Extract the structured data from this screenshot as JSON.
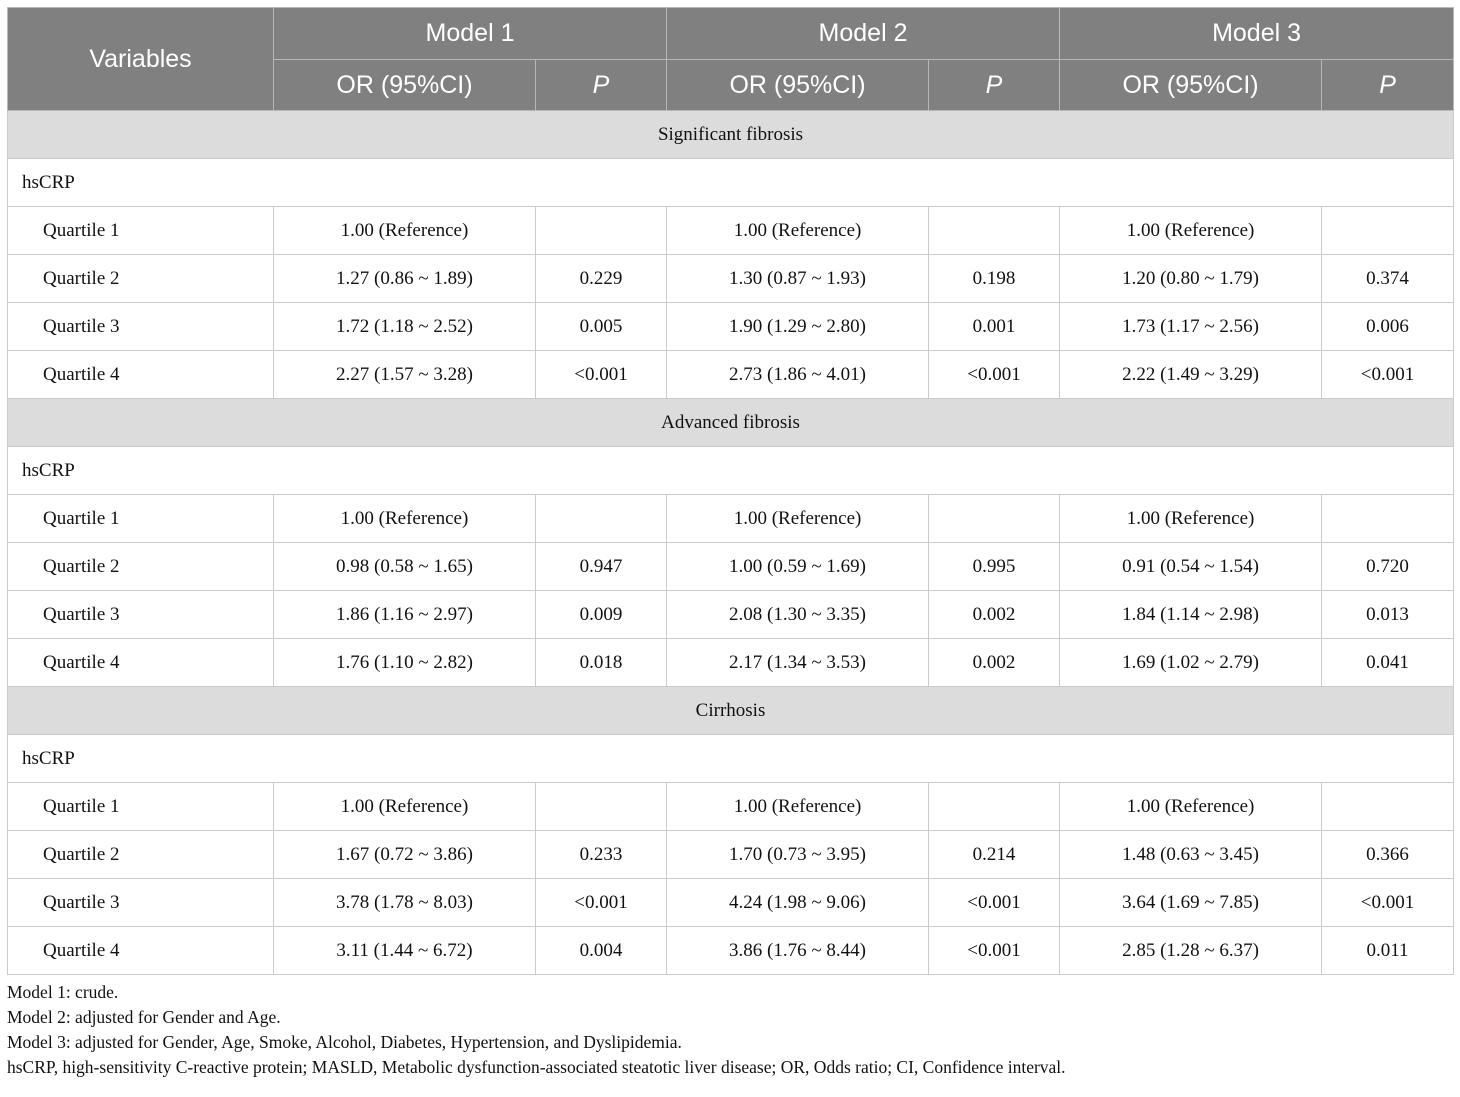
{
  "header": {
    "variables": "Variables",
    "models": [
      "Model 1",
      "Model 2",
      "Model 3"
    ],
    "or_label": "OR (95%CI)",
    "p_label": "P"
  },
  "sections": [
    {
      "title": "Significant fibrosis",
      "subheading": "hsCRP",
      "rows": [
        {
          "label": "Quartile 1",
          "cells": [
            "1.00 (Reference)",
            "",
            "1.00 (Reference)",
            "",
            "1.00 (Reference)",
            ""
          ]
        },
        {
          "label": "Quartile 2",
          "cells": [
            "1.27 (0.86 ~ 1.89)",
            "0.229",
            "1.30 (0.87 ~ 1.93)",
            "0.198",
            "1.20 (0.80 ~ 1.79)",
            "0.374"
          ]
        },
        {
          "label": "Quartile 3",
          "cells": [
            "1.72 (1.18 ~ 2.52)",
            "0.005",
            "1.90 (1.29 ~ 2.80)",
            "0.001",
            "1.73 (1.17 ~ 2.56)",
            "0.006"
          ]
        },
        {
          "label": "Quartile 4",
          "cells": [
            "2.27 (1.57 ~ 3.28)",
            "<0.001",
            "2.73 (1.86 ~ 4.01)",
            "<0.001",
            "2.22 (1.49 ~ 3.29)",
            "<0.001"
          ]
        }
      ]
    },
    {
      "title": "Advanced fibrosis",
      "subheading": "hsCRP",
      "rows": [
        {
          "label": "Quartile 1",
          "cells": [
            "1.00 (Reference)",
            "",
            "1.00 (Reference)",
            "",
            "1.00 (Reference)",
            ""
          ]
        },
        {
          "label": "Quartile 2",
          "cells": [
            "0.98 (0.58 ~ 1.65)",
            "0.947",
            "1.00 (0.59 ~ 1.69)",
            "0.995",
            "0.91 (0.54 ~ 1.54)",
            "0.720"
          ]
        },
        {
          "label": "Quartile 3",
          "cells": [
            "1.86 (1.16 ~ 2.97)",
            "0.009",
            "2.08 (1.30 ~ 3.35)",
            "0.002",
            "1.84 (1.14 ~ 2.98)",
            "0.013"
          ]
        },
        {
          "label": "Quartile 4",
          "cells": [
            "1.76 (1.10 ~ 2.82)",
            "0.018",
            "2.17 (1.34 ~ 3.53)",
            "0.002",
            "1.69 (1.02 ~ 2.79)",
            "0.041"
          ]
        }
      ]
    },
    {
      "title": "Cirrhosis",
      "subheading": "hsCRP",
      "rows": [
        {
          "label": "Quartile 1",
          "cells": [
            "1.00 (Reference)",
            "",
            "1.00 (Reference)",
            "",
            "1.00 (Reference)",
            ""
          ]
        },
        {
          "label": "Quartile 2",
          "cells": [
            "1.67 (0.72 ~ 3.86)",
            "0.233",
            "1.70 (0.73 ~ 3.95)",
            "0.214",
            "1.48 (0.63 ~ 3.45)",
            "0.366"
          ]
        },
        {
          "label": "Quartile 3",
          "cells": [
            "3.78 (1.78 ~ 8.03)",
            "<0.001",
            "4.24 (1.98 ~ 9.06)",
            "<0.001",
            "3.64 (1.69 ~ 7.85)",
            "<0.001"
          ]
        },
        {
          "label": "Quartile 4",
          "cells": [
            "3.11 (1.44 ~ 6.72)",
            "0.004",
            "3.86 (1.76 ~ 8.44)",
            "<0.001",
            "2.85 (1.28 ~ 6.37)",
            "0.011"
          ]
        }
      ]
    }
  ],
  "footnotes": [
    "Model 1: crude.",
    "Model 2: adjusted for Gender and Age.",
    "Model 3: adjusted for Gender, Age, Smoke, Alcohol, Diabetes, Hypertension, and Dyslipidemia.",
    "hsCRP, high-sensitivity C-reactive protein; MASLD, Metabolic dysfunction-associated steatotic liver disease; OR, Odds ratio; CI, Confidence interval."
  ]
}
